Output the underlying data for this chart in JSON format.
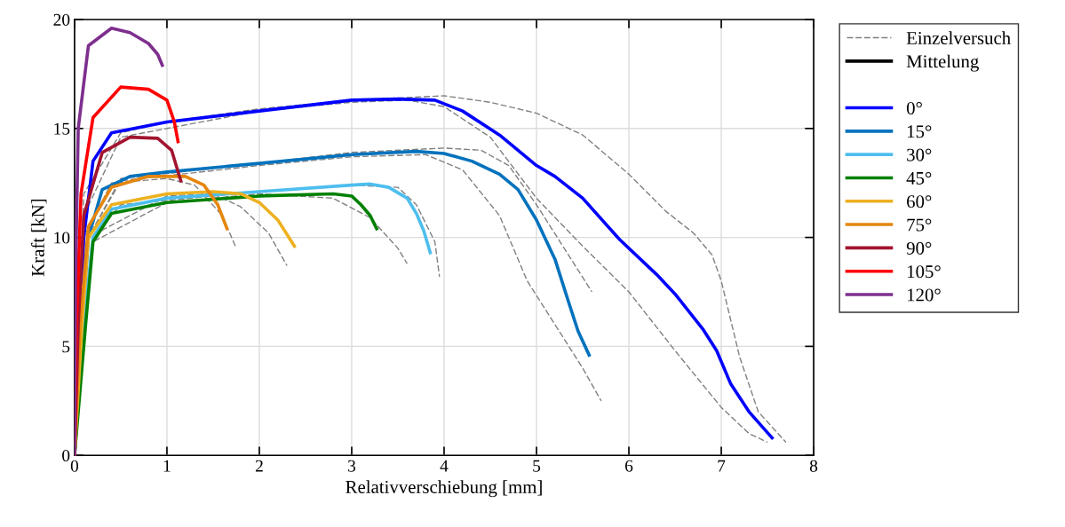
{
  "chart_data": {
    "type": "line",
    "xlabel": "Relativverschiebung [mm]",
    "ylabel": "Kraft [kN]",
    "xlim": [
      0,
      8
    ],
    "ylim": [
      0,
      20
    ],
    "xticks": [
      0,
      1,
      2,
      3,
      4,
      5,
      6,
      7,
      8
    ],
    "yticks": [
      0,
      5,
      10,
      15,
      20
    ],
    "grid": true,
    "legend": "right",
    "marker": "none",
    "series": [
      {
        "name": "Einzelversuch",
        "color": "#808080",
        "line_style": "dashed",
        "x": [
          0,
          0.1,
          0.5,
          1,
          2,
          3,
          4,
          4.5,
          5,
          5.5,
          6,
          6.4,
          6.7,
          6.9,
          7.0,
          7.2,
          7.4,
          7.7
        ],
        "values": [
          0,
          12,
          14.8,
          15.3,
          15.9,
          16.3,
          16.5,
          16.2,
          15.7,
          14.7,
          12.9,
          11.2,
          10.2,
          9.2,
          8,
          4.5,
          2,
          0.6
        ]
      },
      {
        "color": "#808080",
        "line_style": "dashed",
        "x": [
          0,
          0.1,
          0.5,
          2,
          3,
          3.6,
          4,
          4.5,
          5,
          5.5,
          6,
          6.5,
          7,
          7.3,
          7.5
        ],
        "values": [
          0,
          11,
          14.6,
          15.8,
          16.2,
          16.3,
          16,
          14.6,
          11.8,
          9.6,
          7.5,
          4.8,
          2.2,
          1.0,
          0.6
        ]
      },
      {
        "color": "#808080",
        "line_style": "dashed",
        "x": [
          0,
          0.15,
          0.5,
          2,
          3,
          4,
          4.4,
          4.7,
          5,
          5.3,
          5.6
        ],
        "values": [
          0,
          10,
          12.7,
          13.4,
          13.9,
          14.1,
          14.0,
          13.3,
          11.5,
          9.5,
          7.5
        ]
      },
      {
        "color": "#808080",
        "line_style": "dashed",
        "x": [
          0,
          0.15,
          0.5,
          2,
          3,
          3.8,
          4.2,
          4.6,
          4.9,
          5.2,
          5.5,
          5.7
        ],
        "values": [
          0,
          10,
          12.6,
          13.3,
          13.7,
          13.8,
          13.1,
          11.0,
          8,
          6,
          4,
          2.5
        ]
      },
      {
        "color": "#808080",
        "line_style": "dashed",
        "x": [
          0,
          0.2,
          0.5,
          2,
          3,
          3.5,
          3.7,
          3.9,
          3.95
        ],
        "values": [
          0,
          10,
          11.5,
          12.1,
          12.4,
          12.3,
          11.5,
          9.8,
          8.2
        ]
      },
      {
        "color": "#808080",
        "line_style": "dashed",
        "x": [
          0,
          0.2,
          1,
          2,
          2.8,
          3.2,
          3.5,
          3.6
        ],
        "values": [
          0,
          9.8,
          11.6,
          12.0,
          11.8,
          10.9,
          9.5,
          8.8
        ]
      },
      {
        "color": "#808080",
        "line_style": "dashed",
        "x": [
          0,
          0.15,
          1,
          1.5,
          1.8,
          2.1,
          2.3
        ],
        "values": [
          0,
          10,
          11.9,
          12.0,
          11.4,
          10.2,
          8.7
        ]
      },
      {
        "color": "#808080",
        "line_style": "dashed",
        "x": [
          0,
          0.1,
          0.4,
          1,
          1.3,
          1.6,
          1.75
        ],
        "values": [
          0,
          10,
          12.5,
          12.7,
          12.4,
          11.0,
          9.5
        ]
      },
      {
        "name": "Mittelung",
        "color": "#000000",
        "line_style": "solid"
      },
      {
        "name": "0°",
        "color": "#0000ff",
        "line_style": "solid",
        "x": [
          0,
          0.05,
          0.1,
          0.2,
          0.4,
          1,
          2,
          3,
          3.5,
          3.9,
          4.2,
          4.6,
          5,
          5.2,
          5.5,
          5.9,
          6.3,
          6.5,
          6.8,
          6.95,
          7.1,
          7.3,
          7.55
        ],
        "values": [
          0,
          5,
          10,
          13.5,
          14.8,
          15.3,
          15.8,
          16.3,
          16.35,
          16.3,
          15.8,
          14.7,
          13.3,
          12.8,
          11.8,
          9.9,
          8.3,
          7.4,
          5.8,
          4.8,
          3.3,
          2.0,
          0.8
        ]
      },
      {
        "name": "15°",
        "color": "#0072bd",
        "line_style": "solid",
        "x": [
          0,
          0.08,
          0.15,
          0.3,
          0.6,
          1,
          2,
          3,
          3.7,
          4,
          4.3,
          4.6,
          4.8,
          5,
          5.2,
          5.35,
          5.45,
          5.57
        ],
        "values": [
          0,
          6,
          10,
          12.2,
          12.8,
          13.0,
          13.4,
          13.8,
          13.95,
          13.85,
          13.5,
          12.9,
          12.2,
          10.8,
          9,
          7,
          5.7,
          4.6
        ]
      },
      {
        "name": "30°",
        "color": "#4dbeee",
        "line_style": "solid",
        "x": [
          0,
          0.1,
          0.2,
          0.4,
          1,
          2,
          3,
          3.2,
          3.4,
          3.6,
          3.7,
          3.78,
          3.85
        ],
        "values": [
          0,
          6,
          10,
          11.3,
          11.8,
          12.1,
          12.4,
          12.45,
          12.3,
          11.8,
          11.1,
          10.3,
          9.3
        ]
      },
      {
        "name": "45°",
        "color": "#008000",
        "line_style": "solid",
        "x": [
          0,
          0.12,
          0.2,
          0.4,
          1,
          2,
          2.8,
          3.0,
          3.1,
          3.2,
          3.27
        ],
        "values": [
          0,
          6,
          9.8,
          11.1,
          11.6,
          11.9,
          12.0,
          11.9,
          11.5,
          11.0,
          10.4
        ]
      },
      {
        "name": "60°",
        "color": "#edb120",
        "line_style": "solid",
        "x": [
          0,
          0.08,
          0.15,
          0.4,
          1,
          1.5,
          1.8,
          2.0,
          2.2,
          2.38
        ],
        "values": [
          0,
          6,
          10,
          11.5,
          12.0,
          12.1,
          12.0,
          11.6,
          10.8,
          9.6
        ]
      },
      {
        "name": "75°",
        "color": "#e5860f",
        "line_style": "solid",
        "x": [
          0,
          0.06,
          0.15,
          0.4,
          0.8,
          1.2,
          1.4,
          1.55,
          1.65
        ],
        "values": [
          0,
          6,
          10.5,
          12.3,
          12.8,
          12.8,
          12.4,
          11.5,
          10.4
        ]
      },
      {
        "name": "90°",
        "color": "#a2142f",
        "line_style": "solid",
        "x": [
          0,
          0.04,
          0.1,
          0.3,
          0.6,
          0.9,
          1.05,
          1.15
        ],
        "values": [
          0,
          6,
          11,
          13.9,
          14.6,
          14.55,
          14,
          12.6
        ]
      },
      {
        "name": "105°",
        "color": "#ff0000",
        "line_style": "solid",
        "x": [
          0,
          0.02,
          0.07,
          0.2,
          0.5,
          0.8,
          1.0,
          1.08,
          1.12
        ],
        "values": [
          0,
          6,
          12,
          15.5,
          16.9,
          16.8,
          16.3,
          15.3,
          14.4
        ]
      },
      {
        "name": "120°",
        "color": "#7e2f8e",
        "line_style": "solid",
        "x": [
          0,
          0.01,
          0.04,
          0.15,
          0.4,
          0.6,
          0.8,
          0.9,
          0.95
        ],
        "values": [
          0,
          8,
          15,
          18.8,
          19.6,
          19.4,
          18.9,
          18.4,
          17.9
        ]
      }
    ]
  }
}
